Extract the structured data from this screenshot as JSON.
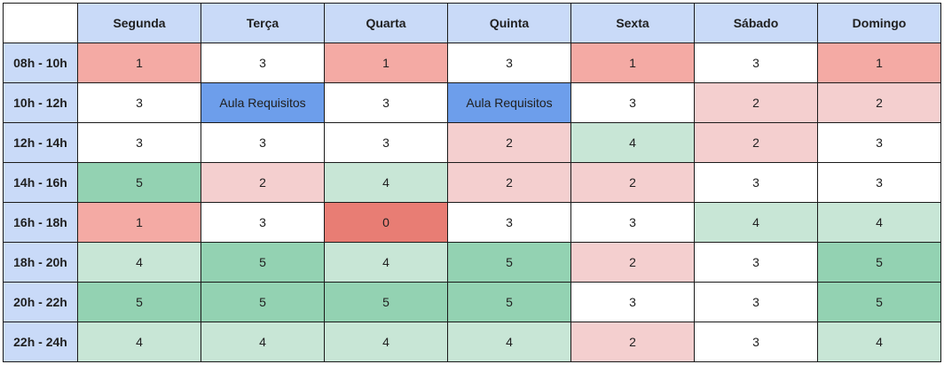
{
  "table": {
    "corner": "",
    "days": [
      "Segunda",
      "Terça",
      "Quarta",
      "Quinta",
      "Sexta",
      "Sábado",
      "Domingo"
    ],
    "rows": [
      {
        "time": "08h - 10h",
        "cells": [
          {
            "text": "1",
            "bg": "#f4aaa4"
          },
          {
            "text": "3",
            "bg": "#ffffff"
          },
          {
            "text": "1",
            "bg": "#f4aaa4"
          },
          {
            "text": "3",
            "bg": "#ffffff"
          },
          {
            "text": "1",
            "bg": "#f4aaa4"
          },
          {
            "text": "3",
            "bg": "#ffffff"
          },
          {
            "text": "1",
            "bg": "#f4aaa4"
          }
        ]
      },
      {
        "time": "10h - 12h",
        "cells": [
          {
            "text": "3",
            "bg": "#ffffff"
          },
          {
            "text": "Aula Requisitos",
            "bg": "#6d9eeb"
          },
          {
            "text": "3",
            "bg": "#ffffff"
          },
          {
            "text": "Aula Requisitos",
            "bg": "#6d9eeb"
          },
          {
            "text": "3",
            "bg": "#ffffff"
          },
          {
            "text": "2",
            "bg": "#f4cfcf"
          },
          {
            "text": "2",
            "bg": "#f4cfcf"
          }
        ]
      },
      {
        "time": "12h - 14h",
        "cells": [
          {
            "text": "3",
            "bg": "#ffffff"
          },
          {
            "text": "3",
            "bg": "#ffffff"
          },
          {
            "text": "3",
            "bg": "#ffffff"
          },
          {
            "text": "2",
            "bg": "#f4cfcf"
          },
          {
            "text": "4",
            "bg": "#c8e6d6"
          },
          {
            "text": "2",
            "bg": "#f4cfcf"
          },
          {
            "text": "3",
            "bg": "#ffffff"
          }
        ]
      },
      {
        "time": "14h - 16h",
        "cells": [
          {
            "text": "5",
            "bg": "#93d2b2"
          },
          {
            "text": "2",
            "bg": "#f4cfcf"
          },
          {
            "text": "4",
            "bg": "#c8e6d6"
          },
          {
            "text": "2",
            "bg": "#f4cfcf"
          },
          {
            "text": "2",
            "bg": "#f4cfcf"
          },
          {
            "text": "3",
            "bg": "#ffffff"
          },
          {
            "text": "3",
            "bg": "#ffffff"
          }
        ]
      },
      {
        "time": "16h - 18h",
        "cells": [
          {
            "text": "1",
            "bg": "#f4aaa4"
          },
          {
            "text": "3",
            "bg": "#ffffff"
          },
          {
            "text": "0",
            "bg": "#e87d74"
          },
          {
            "text": "3",
            "bg": "#ffffff"
          },
          {
            "text": "3",
            "bg": "#ffffff"
          },
          {
            "text": "4",
            "bg": "#c8e6d6"
          },
          {
            "text": "4",
            "bg": "#c8e6d6"
          }
        ]
      },
      {
        "time": "18h - 20h",
        "cells": [
          {
            "text": "4",
            "bg": "#c8e6d6"
          },
          {
            "text": "5",
            "bg": "#93d2b2"
          },
          {
            "text": "4",
            "bg": "#c8e6d6"
          },
          {
            "text": "5",
            "bg": "#93d2b2"
          },
          {
            "text": "2",
            "bg": "#f4cfcf"
          },
          {
            "text": "3",
            "bg": "#ffffff"
          },
          {
            "text": "5",
            "bg": "#93d2b2"
          }
        ]
      },
      {
        "time": "20h - 22h",
        "cells": [
          {
            "text": "5",
            "bg": "#93d2b2"
          },
          {
            "text": "5",
            "bg": "#93d2b2"
          },
          {
            "text": "5",
            "bg": "#93d2b2"
          },
          {
            "text": "5",
            "bg": "#93d2b2"
          },
          {
            "text": "3",
            "bg": "#ffffff"
          },
          {
            "text": "3",
            "bg": "#ffffff"
          },
          {
            "text": "5",
            "bg": "#93d2b2"
          }
        ]
      },
      {
        "time": "22h - 24h",
        "cells": [
          {
            "text": "4",
            "bg": "#c8e6d6"
          },
          {
            "text": "4",
            "bg": "#c8e6d6"
          },
          {
            "text": "4",
            "bg": "#c8e6d6"
          },
          {
            "text": "4",
            "bg": "#c8e6d6"
          },
          {
            "text": "2",
            "bg": "#f4cfcf"
          },
          {
            "text": "3",
            "bg": "#ffffff"
          },
          {
            "text": "4",
            "bg": "#c8e6d6"
          }
        ]
      }
    ]
  }
}
